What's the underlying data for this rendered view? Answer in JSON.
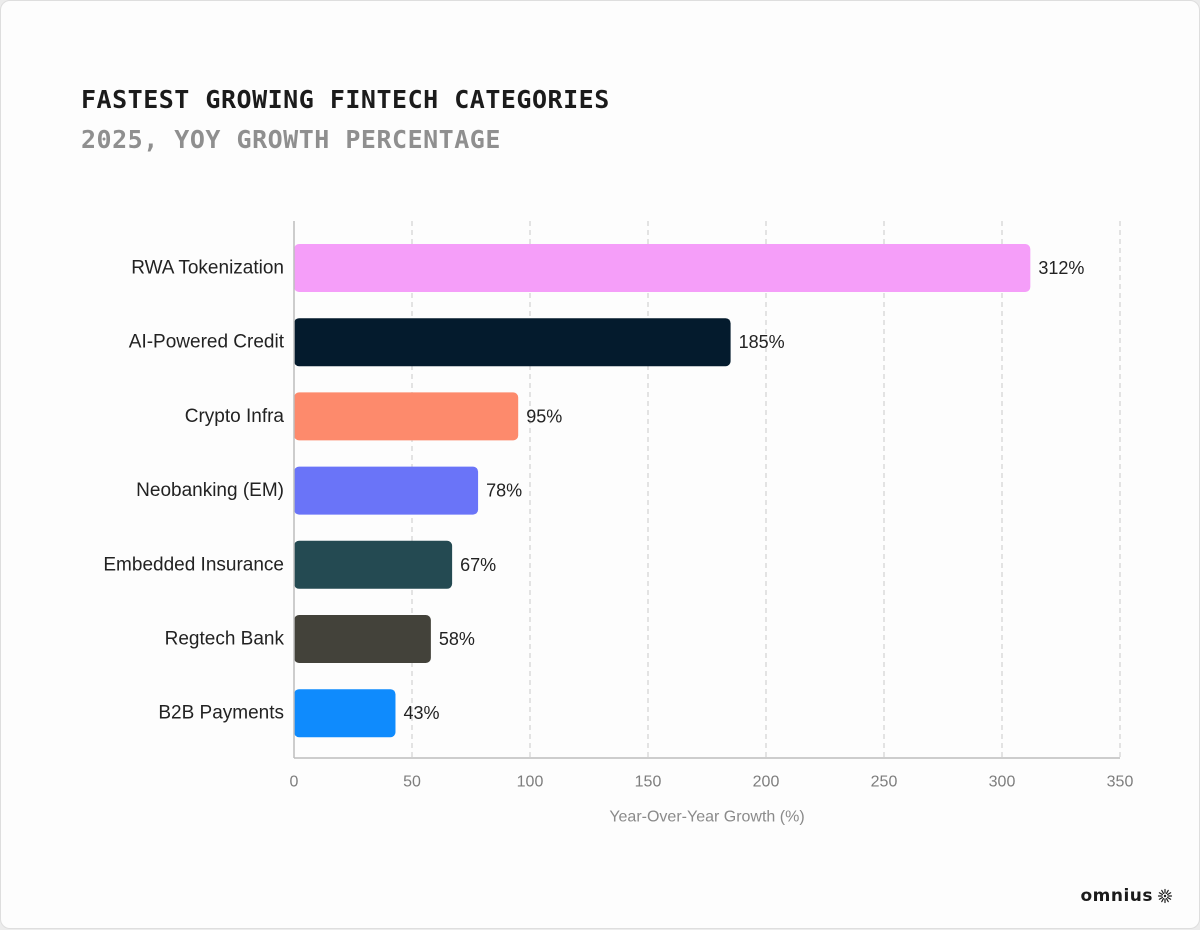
{
  "header": {
    "title": "FASTEST GROWING FINTECH CATEGORIES",
    "subtitle": "2025, YOY GROWTH PERCENTAGE"
  },
  "brand": {
    "logo_text": "omnius"
  },
  "chart_data": {
    "type": "bar",
    "orientation": "horizontal",
    "title": "FASTEST GROWING FINTECH CATEGORIES",
    "subtitle": "2025, YOY GROWTH PERCENTAGE",
    "categories": [
      "RWA Tokenization",
      "AI-Powered Credit",
      "Crypto Infra",
      "Neobanking (EM)",
      "Embedded Insurance",
      "Regtech Bank",
      "B2B Payments"
    ],
    "values": [
      312,
      185,
      95,
      78,
      67,
      58,
      43
    ],
    "value_labels": [
      "312%",
      "185%",
      "95%",
      "78%",
      "67%",
      "58%",
      "43%"
    ],
    "colors": [
      "#f59ef9",
      "#041b2d",
      "#fd8a6c",
      "#6a74f8",
      "#244a52",
      "#43423a",
      "#0f8bfd"
    ],
    "xlabel": "Year-Over-Year Growth (%)",
    "ylabel": "",
    "xlim": [
      0,
      350
    ],
    "xticks": [
      0,
      50,
      100,
      150,
      200,
      250,
      300,
      350
    ],
    "xtick_labels": [
      "0",
      "50",
      "100",
      "150",
      "200",
      "250",
      "300",
      "350"
    ],
    "grid": "vertical-dashed",
    "legend": "none"
  }
}
